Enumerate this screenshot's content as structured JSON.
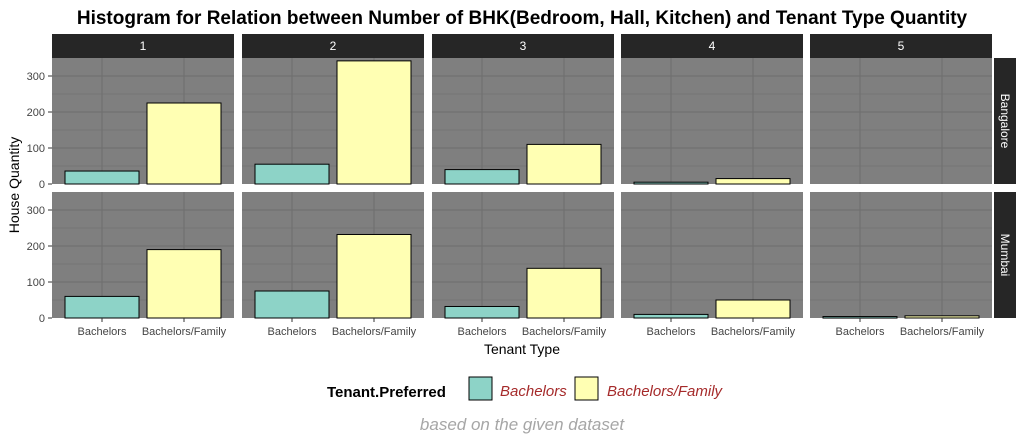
{
  "chart_data": {
    "type": "bar",
    "title": "Histogram for Relation between Number of BHK(Bedroom, Hall, Kitchen) and Tenant Type Quantity",
    "xlabel": "Tenant Type",
    "ylabel": "House Quantity",
    "caption": "based on the given dataset",
    "ylim": [
      0,
      350
    ],
    "yticks": [
      0,
      100,
      200,
      300
    ],
    "categories": [
      "Bachelors",
      "Bachelors/Family"
    ],
    "col_facets": [
      "1",
      "2",
      "3",
      "4",
      "5"
    ],
    "row_facets": [
      "Bangalore",
      "Mumbai"
    ],
    "legend": {
      "title": "Tenant.Preferred",
      "position": "bottom",
      "items": [
        {
          "label": "Bachelors",
          "color": "#8dd3c7"
        },
        {
          "label": "Bachelors/Family",
          "color": "#ffffb3"
        }
      ]
    },
    "panels": {
      "Bangalore": {
        "1": [
          36,
          225
        ],
        "2": [
          55,
          342
        ],
        "3": [
          40,
          110
        ],
        "4": [
          5,
          15
        ]
      },
      "Mumbai": {
        "1": [
          60,
          190
        ],
        "2": [
          75,
          232
        ],
        "3": [
          32,
          138
        ],
        "4": [
          10,
          50
        ],
        "5": [
          4,
          6
        ]
      }
    },
    "colors": {
      "panel_bg": "#7f7f7f",
      "grid": "#6e6e6e",
      "strip_bg": "#262626",
      "strip_text": "#ffffff",
      "legend_text": "#a52a2a",
      "caption": "#a6a6a6"
    }
  }
}
